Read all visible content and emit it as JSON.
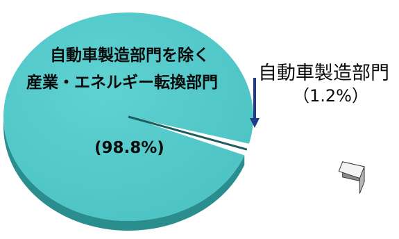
{
  "chart_data": {
    "type": "pie",
    "title": "",
    "slices": [
      {
        "label_lines": [
          "自動車製造部門を除く",
          "産業・エネルギー転換部門"
        ],
        "value": 98.8,
        "value_label": "(98.8%)",
        "color": "#4cc2c2"
      },
      {
        "label_lines": [
          "自動車製造部門"
        ],
        "value": 1.2,
        "value_label": "（1.2%）",
        "color": "#f4f4f4",
        "exploded": true
      }
    ],
    "annotation_arrow_color": "#1f3a8a",
    "style": "3d-exploded"
  }
}
